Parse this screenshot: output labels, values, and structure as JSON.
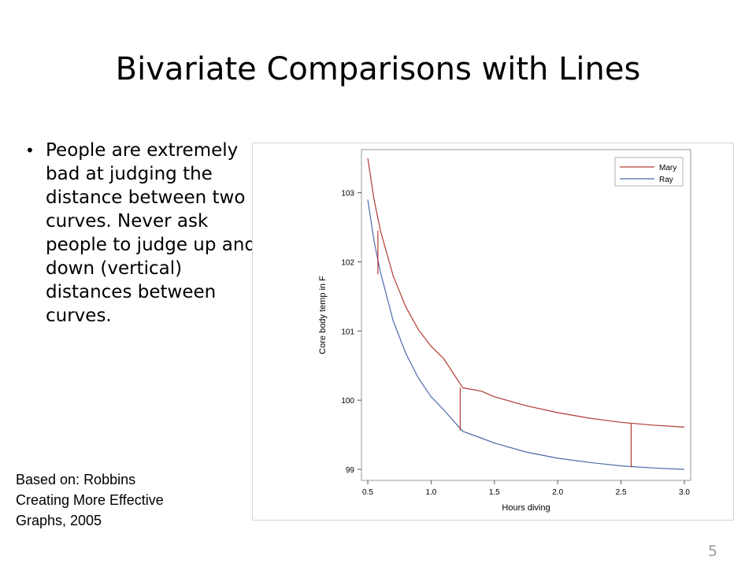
{
  "slide": {
    "title": "Bivariate Comparisons with Lines",
    "bullet": "People are extremely bad at judging the distance between two curves.  Never ask people to judge up and down (vertical) distances between curves.",
    "citation": "Based on: Robbins\nCreating More Effective\nGraphs, 2005",
    "page_number": "5"
  },
  "chart_data": {
    "type": "line",
    "xlabel": "Hours diving",
    "ylabel": "Core body temp in F",
    "xlim": [
      0.5,
      3.0
    ],
    "ylim": [
      99,
      103.6
    ],
    "xticks": [
      "0.5",
      "1.0",
      "1.5",
      "2.0",
      "2.5",
      "3.0"
    ],
    "yticks": [
      "99",
      "100",
      "101",
      "102",
      "103"
    ],
    "grid": false,
    "legend_position": "top-right",
    "x": [
      0.5,
      0.55,
      0.6,
      0.7,
      0.8,
      0.9,
      1.0,
      1.1,
      1.25,
      1.4,
      1.5,
      1.75,
      2.0,
      2.25,
      2.5,
      2.75,
      3.0
    ],
    "series": [
      {
        "name": "Mary",
        "color": "#b23a32",
        "values": [
          103.5,
          102.9,
          102.45,
          101.8,
          101.35,
          101.02,
          100.78,
          100.6,
          100.18,
          100.13,
          100.05,
          99.92,
          99.82,
          99.74,
          99.68,
          99.64,
          99.61
        ]
      },
      {
        "name": "Ray",
        "color": "#4a6aa8",
        "values": [
          102.9,
          102.3,
          101.85,
          101.15,
          100.68,
          100.32,
          100.05,
          99.86,
          99.55,
          99.45,
          99.38,
          99.25,
          99.16,
          99.1,
          99.05,
          99.02,
          99.0
        ]
      }
    ],
    "annotations": [
      {
        "x": 0.58,
        "y_top": 102.45,
        "y_bottom": 101.82,
        "color": "#b23a32"
      },
      {
        "x": 1.23,
        "y_top": 100.18,
        "y_bottom": 99.56,
        "color": "#b23a32"
      },
      {
        "x": 2.58,
        "y_top": 99.66,
        "y_bottom": 99.03,
        "color": "#b23a32"
      }
    ]
  }
}
